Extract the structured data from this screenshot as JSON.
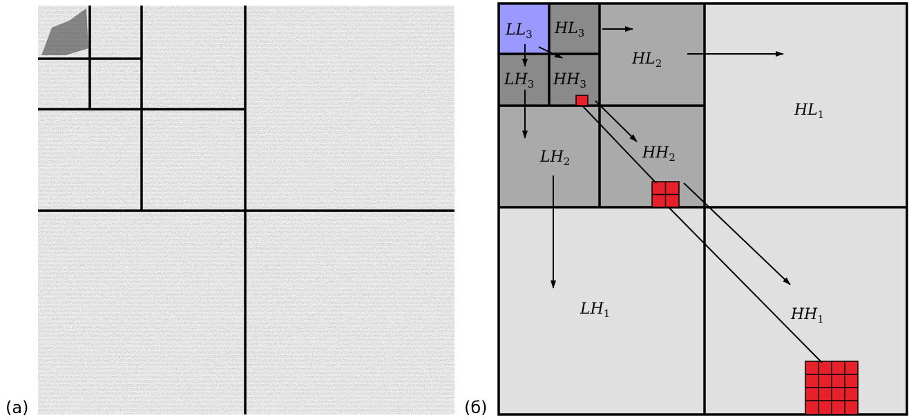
{
  "panel_a": {
    "label": "(a)"
  },
  "panel_b": {
    "label": "(б)",
    "subbands": [
      {
        "name": "LL",
        "level": "3"
      },
      {
        "name": "HL",
        "level": "3"
      },
      {
        "name": "LH",
        "level": "3"
      },
      {
        "name": "HH",
        "level": "3"
      },
      {
        "name": "HL",
        "level": "2"
      },
      {
        "name": "LH",
        "level": "2"
      },
      {
        "name": "HH",
        "level": "2"
      },
      {
        "name": "HL",
        "level": "1"
      },
      {
        "name": "LH",
        "level": "1"
      },
      {
        "name": "HH",
        "level": "1"
      }
    ]
  }
}
